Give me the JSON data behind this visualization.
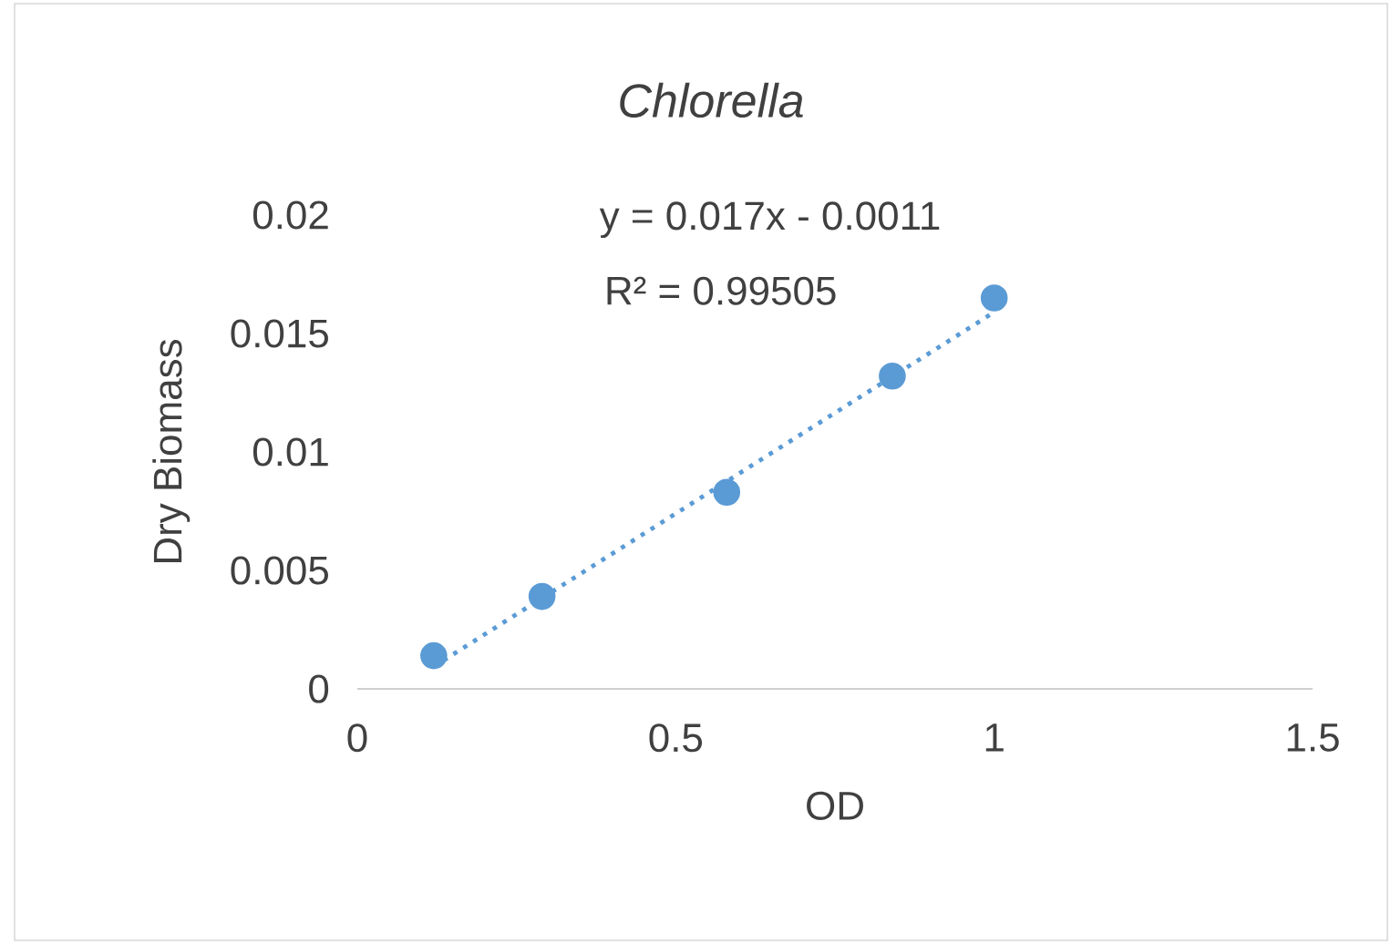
{
  "chart_data": {
    "type": "scatter",
    "title": "Chlorella",
    "xlabel": "OD",
    "ylabel": "Dry Biomass",
    "xlim": [
      0,
      1.5
    ],
    "xticks": [
      0,
      0.5,
      1,
      1.5
    ],
    "ylim": [
      0,
      0.02
    ],
    "yticks": [
      0,
      0.005,
      0.01,
      0.015,
      0.02
    ],
    "grid": false,
    "series": [
      {
        "marker": "circle",
        "color": "#5b9bd5",
        "x": [
          0.12,
          0.29,
          0.58,
          0.84,
          1.0
        ],
        "values": [
          0.0014,
          0.0039,
          0.0083,
          0.0132,
          0.0165
        ]
      },
      {
        "type": "line",
        "line_style": "dotted",
        "marker": "none",
        "color": "#5b9bd5",
        "x": [
          0.12,
          1.0
        ],
        "values": [
          0.00094,
          0.0159
        ]
      }
    ],
    "annotations": [
      "y = 0.017x - 0.0011",
      "R² = 0.99505"
    ]
  }
}
